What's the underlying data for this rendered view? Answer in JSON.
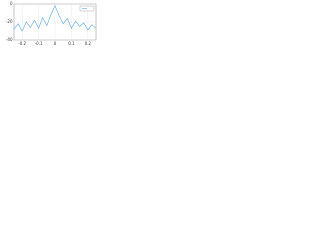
{
  "chart_data": {
    "type": "line",
    "x": [
      -0.25,
      -0.225,
      -0.2,
      -0.175,
      -0.15,
      -0.125,
      -0.1,
      -0.075,
      -0.05,
      -0.025,
      0,
      0.025,
      0.05,
      0.075,
      0.1,
      0.125,
      0.15,
      0.175,
      0.2,
      0.225,
      0.25
    ],
    "series": [
      {
        "color": "#5aa9e6",
        "values": [
          -28,
          -22,
          -30,
          -20,
          -26,
          -18,
          -27,
          -15,
          -24,
          -12,
          -2,
          -13,
          -22,
          -16,
          -27,
          -19,
          -25,
          -21,
          -29,
          -23,
          -27
        ]
      }
    ],
    "xlim": [
      -0.25,
      0.25
    ],
    "xticks": [
      -0.2,
      -0.1,
      0,
      0.1,
      0.2
    ],
    "ylim": [
      -40,
      0
    ],
    "yticks": [
      -40,
      -20,
      0
    ],
    "grid": true
  }
}
